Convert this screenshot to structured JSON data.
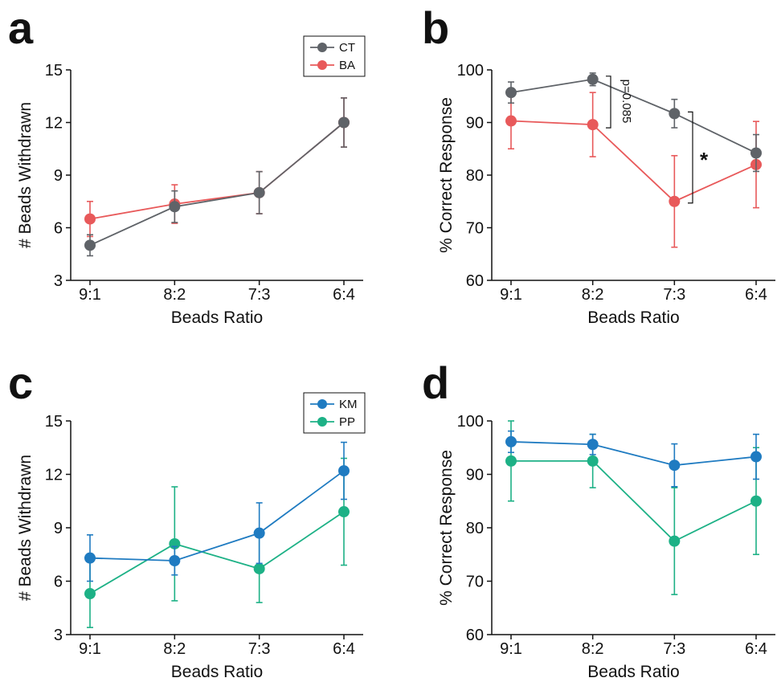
{
  "chart_data": [
    {
      "panel": "a",
      "type": "line",
      "categories": [
        "9:1",
        "8:2",
        "7:3",
        "6:4"
      ],
      "xlabel": "Beads Ratio",
      "ylabel": "# Beads Withdrawn",
      "ylim": [
        3,
        15
      ],
      "yticks": [
        3,
        6,
        9,
        12,
        15
      ],
      "legend": "top-right",
      "series": [
        {
          "name": "CT",
          "color": "#5f6368",
          "values": [
            5.0,
            7.2,
            8.0,
            12.0
          ],
          "err": [
            0.6,
            0.9,
            1.2,
            1.4
          ]
        },
        {
          "name": "BA",
          "color": "#e8595a",
          "values": [
            6.5,
            7.35,
            8.0,
            12.0
          ],
          "err": [
            1.0,
            1.1,
            1.2,
            1.4
          ]
        }
      ]
    },
    {
      "panel": "b",
      "type": "line",
      "categories": [
        "9:1",
        "8:2",
        "7:3",
        "6:4"
      ],
      "xlabel": "Beads Ratio",
      "ylabel": "% Correct Response",
      "ylim": [
        60,
        100
      ],
      "yticks": [
        60,
        70,
        80,
        90,
        100
      ],
      "series": [
        {
          "name": "CT",
          "color": "#5f6368",
          "values": [
            95.7,
            98.2,
            91.7,
            84.2
          ],
          "err": [
            2.0,
            1.2,
            2.7,
            3.5
          ]
        },
        {
          "name": "BA",
          "color": "#e8595a",
          "values": [
            90.3,
            89.6,
            75.0,
            82.0
          ],
          "err": [
            5.3,
            6.1,
            8.7,
            8.2
          ]
        }
      ],
      "annotations": {
        "p_value": "p=0.085",
        "significance": "*"
      }
    },
    {
      "panel": "c",
      "type": "line",
      "categories": [
        "9:1",
        "8:2",
        "7:3",
        "6:4"
      ],
      "xlabel": "Beads Ratio",
      "ylabel": "# Beads Withdrawn",
      "ylim": [
        3,
        15
      ],
      "yticks": [
        3,
        6,
        9,
        12,
        15
      ],
      "legend": "top-right",
      "series": [
        {
          "name": "KM",
          "color": "#1f7bc1",
          "values": [
            7.3,
            7.15,
            8.7,
            12.2
          ],
          "err": [
            1.3,
            0.8,
            1.7,
            1.6
          ]
        },
        {
          "name": "PP",
          "color": "#1db186",
          "values": [
            5.3,
            8.1,
            6.7,
            9.9
          ],
          "err": [
            1.9,
            3.2,
            1.9,
            3.0
          ]
        }
      ]
    },
    {
      "panel": "d",
      "type": "line",
      "categories": [
        "9:1",
        "8:2",
        "7:3",
        "6:4"
      ],
      "xlabel": "Beads Ratio",
      "ylabel": "% Correct Response",
      "ylim": [
        60,
        100
      ],
      "yticks": [
        60,
        70,
        80,
        90,
        100
      ],
      "series": [
        {
          "name": "KM",
          "color": "#1f7bc1",
          "values": [
            96.1,
            95.6,
            91.7,
            93.3
          ],
          "err": [
            2.0,
            1.9,
            4.0,
            4.2
          ]
        },
        {
          "name": "PP",
          "color": "#1db186",
          "values": [
            92.5,
            92.5,
            77.5,
            85.0
          ],
          "err": [
            7.5,
            5.0,
            10.0,
            10.0
          ]
        }
      ]
    }
  ]
}
